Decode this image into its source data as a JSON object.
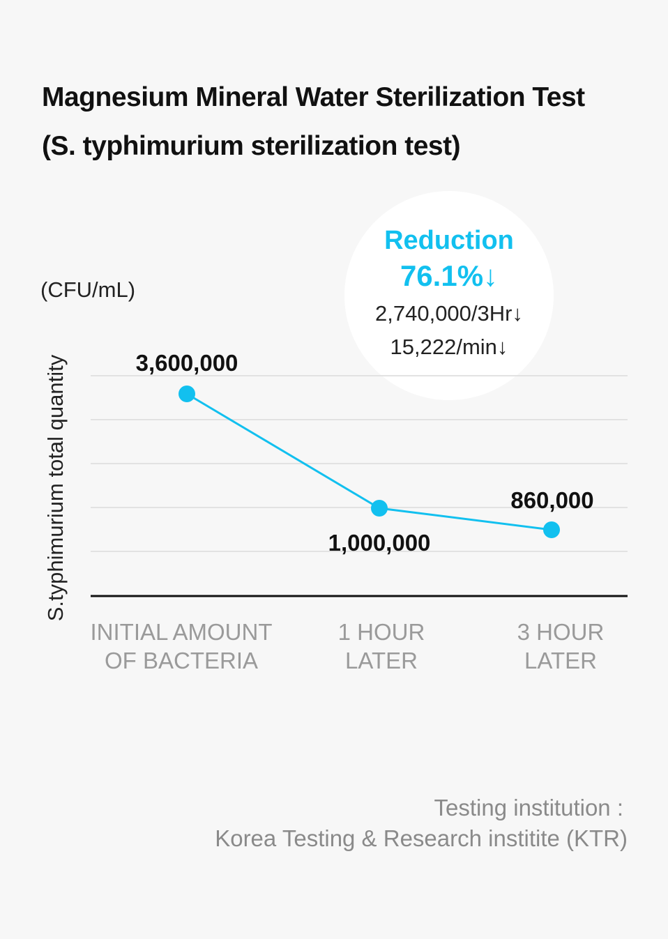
{
  "chart_data": {
    "type": "line",
    "title": [
      "Magnesium Mineral Water Sterilization Test",
      "(S. typhimurium sterilization test)"
    ],
    "ylabel": "S.typhimurium total quantity",
    "unit": "(CFU/mL)",
    "categories": [
      [
        "INITIAL AMOUNT",
        "OF BACTERIA"
      ],
      [
        "1 HOUR",
        "LATER"
      ],
      [
        "3 HOUR",
        "LATER"
      ]
    ],
    "values": [
      3600000,
      1000000,
      860000
    ],
    "value_labels": [
      "3,600,000",
      "1,000,000",
      "860,000"
    ],
    "grid": true,
    "series_color": "#12c0ef",
    "annotation": {
      "label": "Reduction",
      "percent": "76.1%↓",
      "line1": "2,740,000/3Hr↓",
      "line2": "15,222/min↓"
    }
  },
  "footer": {
    "line1": "Testing institution :",
    "line2": "Korea Testing & Research institite (KTR)"
  }
}
